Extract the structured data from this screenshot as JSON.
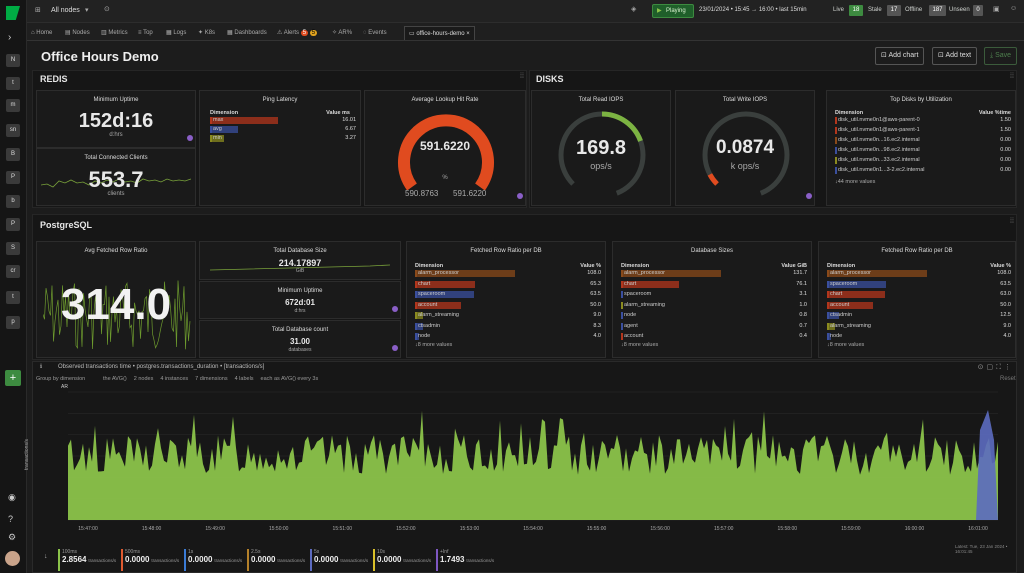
{
  "topbar": {
    "nodes_label": "All nodes",
    "playing_label": "Playing",
    "timerange": "23/01/2024 • 15:45 → 16:00 • last 15min",
    "live_label": "Live",
    "live_count": "18",
    "stale_label": "Stale",
    "stale_count": "17",
    "offline_label": "Offline",
    "offline_count": "187",
    "unseen_label": "Unseen",
    "unseen_count": "0"
  },
  "tabs": {
    "home": "Home",
    "nodes": "Nodes",
    "metrics": "Metrics",
    "top": "Top",
    "logs": "Logs",
    "k8s": "K8s",
    "dashboards": "Dashboards",
    "alerts": "Alerts",
    "alerts_crit": "5",
    "alerts_warn": "5",
    "ar": "AR%",
    "events": "Events",
    "active": "office-hours-demo"
  },
  "rail": [
    "N",
    "t",
    "m",
    "sn",
    "B",
    "P",
    "b",
    "P",
    "S",
    "cr",
    "t",
    "p"
  ],
  "header": {
    "title": "Office Hours Demo",
    "add_chart": "Add chart",
    "add_text": "Add text",
    "save": "Save"
  },
  "sections": {
    "redis": "REDIS",
    "disks": "DISKS",
    "postgres": "PostgreSQL"
  },
  "redis": {
    "uptime_title": "Minimum Uptime",
    "uptime_value": "152d:16",
    "uptime_unit": "d:hrs",
    "clients_title": "Total Connected Clients",
    "clients_value": "553.7",
    "clients_unit": "clients",
    "latency_title": "Ping Latency",
    "latency_dim": "Dimension",
    "latency_val": "Value ms",
    "latency_rows": [
      {
        "name": "max",
        "value": "16.01"
      },
      {
        "name": "avg",
        "value": "6.67"
      },
      {
        "name": "min",
        "value": "3.27"
      }
    ],
    "hit_title": "Average Lookup Hit Rate",
    "hit_value": "591.6220",
    "hit_unit": "%",
    "hit_min": "590.8763",
    "hit_max": "591.6220"
  },
  "disks": {
    "read_title": "Total Read IOPS",
    "read_value": "169.8",
    "read_unit": "ops/s",
    "write_title": "Total Write IOPS",
    "write_value": "0.0874",
    "write_unit": "k ops/s",
    "top_title": "Top Disks by Utilization",
    "top_dim": "Dimension",
    "top_val": "Value %time",
    "top_rows": [
      {
        "name": "disk_util.nvme0n1@aws-parent-0",
        "value": "1.50"
      },
      {
        "name": "disk_util.nvme0n1@aws-parent-1",
        "value": "1.50"
      },
      {
        "name": "disk_util.nvme0n...16.ec2.internal",
        "value": "0.00"
      },
      {
        "name": "disk_util.nvme0n...98.ec2.internal",
        "value": "0.00"
      },
      {
        "name": "disk_util.nvme0n...33.ec2.internal",
        "value": "0.00"
      },
      {
        "name": "disk_util.nvme0n1...3-2.ec2.internal",
        "value": "0.00"
      }
    ],
    "top_more": "↓44 more values"
  },
  "pg": {
    "ratio_title": "Avg Fetched Row Ratio",
    "ratio_value": "314.0",
    "size_title": "Total Database Size",
    "size_value": "214.17897",
    "size_unit": "GiB",
    "uptime_title": "Minimum Uptime",
    "uptime_value": "672d:01",
    "uptime_unit": "d:hrs",
    "count_title": "Total Database count",
    "count_value": "31.00",
    "count_unit": "databases",
    "fetch1_title": "Fetched Row Ratio per DB",
    "fetch1_dim": "Dimension",
    "fetch1_val": "Value %",
    "fetch1_rows": [
      {
        "name": "alarm_processor",
        "value": "108.0"
      },
      {
        "name": "chart",
        "value": "65.3"
      },
      {
        "name": "spaceroom",
        "value": "63.5"
      },
      {
        "name": "account",
        "value": "50.0"
      },
      {
        "name": "alarm_streaming",
        "value": "9.0"
      },
      {
        "name": "ctsadmin",
        "value": "8.3"
      },
      {
        "name": "node",
        "value": "4.0"
      }
    ],
    "fetch1_more": "↓8 more values",
    "sizes_title": "Database Sizes",
    "sizes_dim": "Dimension",
    "sizes_val": "Value GiB",
    "sizes_rows": [
      {
        "name": "alarm_processor",
        "value": "131.7"
      },
      {
        "name": "chart",
        "value": "76.1"
      },
      {
        "name": "spaceroom",
        "value": "3.1"
      },
      {
        "name": "alarm_streaming",
        "value": "1.0"
      },
      {
        "name": "node",
        "value": "0.8"
      },
      {
        "name": "agent",
        "value": "0.7"
      },
      {
        "name": "account",
        "value": "0.4"
      }
    ],
    "sizes_more": "↓8 more values",
    "fetch2_title": "Fetched Row Ratio per DB",
    "fetch2_dim": "Dimension",
    "fetch2_val": "Value %",
    "fetch2_rows": [
      {
        "name": "alarm_processor",
        "value": "108.0"
      },
      {
        "name": "spaceroom",
        "value": "63.5"
      },
      {
        "name": "chart",
        "value": "63.0"
      },
      {
        "name": "account",
        "value": "50.0"
      },
      {
        "name": "ctsadmin",
        "value": "12.5"
      },
      {
        "name": "alarm_streaming",
        "value": "9.0"
      },
      {
        "name": "node",
        "value": "4.0"
      }
    ],
    "fetch2_more": "↓8 more values"
  },
  "bigchart": {
    "title": "Observed transactions time • postgres.transactions_duration • [transactions/s]",
    "groupby": "Group by dimension",
    "controls": [
      "the AVG()",
      "2 nodes",
      "4 instances",
      "7 dimensions",
      "4 labels",
      "each as AVG() every 3s"
    ],
    "reset": "Reset",
    "ar": "AR",
    "ylabel": "transactions/s",
    "xticks": [
      "15:47:00",
      "15:48:00",
      "15:49:00",
      "15:50:00",
      "15:51:00",
      "15:52:00",
      "15:53:00",
      "15:54:00",
      "15:55:00",
      "15:56:00",
      "15:57:00",
      "15:58:00",
      "15:59:00",
      "16:00:00",
      "16:01:00"
    ],
    "latest": "Latest: Tue, 23 Jan 2024 • 16:01:45",
    "legend": [
      {
        "name": "100ms",
        "value": "2.8564",
        "unit": "transactions/s",
        "color": "#8bc34a"
      },
      {
        "name": "500ms",
        "value": "0.0000",
        "unit": "transactions/s",
        "color": "#e05a2f"
      },
      {
        "name": "1s",
        "value": "0.0000",
        "unit": "transactions/s",
        "color": "#3a7bd5"
      },
      {
        "name": "2.5s",
        "value": "0.0000",
        "unit": "transactions/s",
        "color": "#b5812a"
      },
      {
        "name": "5s",
        "value": "0.0000",
        "unit": "transactions/s",
        "color": "#5c6bc0"
      },
      {
        "name": "10s",
        "value": "0.0000",
        "unit": "transactions/s",
        "color": "#d9c02a"
      },
      {
        "name": "+Inf",
        "value": "1.7493",
        "unit": "transactions/s",
        "color": "#7e57c2"
      }
    ]
  },
  "colors": {
    "green": "#4caf50",
    "accent": "#00ab44",
    "orange": "#e04b1f",
    "barOrange": "#8a4a1a",
    "barRed": "#b3361c",
    "barBlue": "#3a4f9e",
    "barYellow": "#8b8b1f"
  }
}
